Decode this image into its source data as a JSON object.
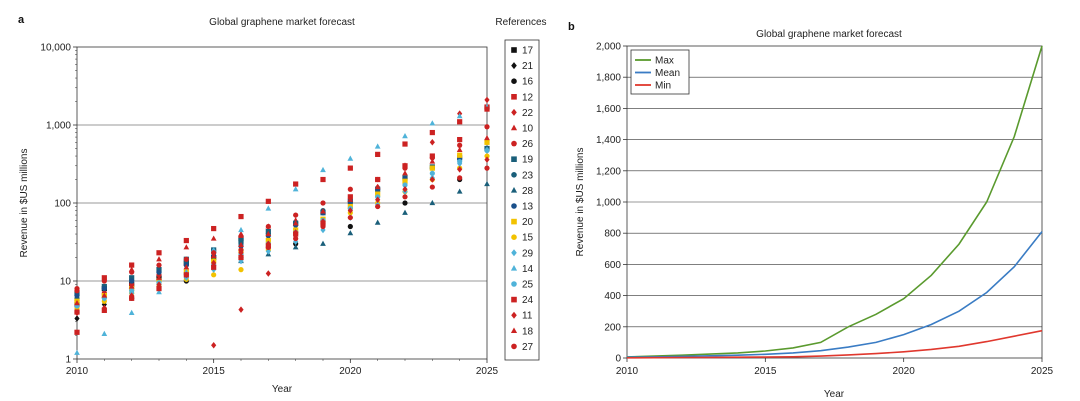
{
  "figure": {
    "panel_a_letter": "a",
    "panel_b_letter": "b"
  },
  "chart_data": [
    {
      "type": "scatter",
      "title": "Global graphene market forecast",
      "xlabel": "Year",
      "ylabel": "Revenue in $US millions",
      "yscale": "log",
      "xlim": [
        2010,
        2025
      ],
      "ylim": [
        1,
        10000
      ],
      "x_ticks": [
        "2010",
        "2015",
        "2020",
        "2025"
      ],
      "y_ticks": [
        "1",
        "10",
        "100",
        "1,000",
        "10,000"
      ],
      "legend_title": "References",
      "legend_position": "right-outside",
      "grid": "horizontal-major",
      "series": [
        {
          "name": "17",
          "marker": "square",
          "color": "#111111",
          "x": [
            2010,
            2011,
            2012,
            2013,
            2014,
            2015,
            2016
          ],
          "y": [
            5,
            8,
            9,
            11,
            17,
            20,
            35
          ]
        },
        {
          "name": "21",
          "marker": "diamond",
          "color": "#111111",
          "x": [
            2010,
            2011,
            2012,
            2013
          ],
          "y": [
            3.3,
            5,
            7,
            9
          ]
        },
        {
          "name": "16",
          "marker": "circle",
          "color": "#111111",
          "x": [
            2010,
            2012,
            2014,
            2016,
            2018,
            2020,
            2022,
            2024
          ],
          "y": [
            4,
            6,
            10,
            20,
            30,
            50,
            100,
            200
          ]
        },
        {
          "name": "12",
          "marker": "square",
          "color": "#cc2222",
          "x": [
            2010,
            2011,
            2012,
            2013,
            2014,
            2015,
            2016,
            2017,
            2018,
            2019,
            2020,
            2021,
            2022,
            2023,
            2024,
            2025
          ],
          "y": [
            2.2,
            11,
            16,
            23,
            33,
            47,
            67,
            105,
            175,
            200,
            280,
            420,
            570,
            800,
            1100,
            1700
          ]
        },
        {
          "name": "22",
          "marker": "diamond",
          "color": "#cc2222",
          "x": [
            2015,
            2016,
            2017,
            2018,
            2019,
            2020,
            2021,
            2022,
            2023,
            2024,
            2025
          ],
          "y": [
            1.5,
            4.3,
            12.5,
            40,
            60,
            100,
            160,
            300,
            600,
            1400,
            2100
          ]
        },
        {
          "name": "10",
          "marker": "triangle",
          "color": "#cc2222",
          "x": [
            2010,
            2011,
            2012,
            2013,
            2014,
            2015,
            2016,
            2017,
            2018
          ],
          "y": [
            6,
            7,
            14,
            19,
            27,
            35,
            40,
            50,
            60
          ]
        },
        {
          "name": "26",
          "marker": "circle",
          "color": "#cc2222",
          "x": [
            2010,
            2011,
            2012,
            2013,
            2014,
            2015,
            2016,
            2017,
            2018,
            2019,
            2020,
            2021,
            2022,
            2023,
            2024,
            2025
          ],
          "y": [
            8,
            7,
            9,
            12,
            16,
            25,
            37,
            50,
            70,
            100,
            150,
            200,
            280,
            380,
            550,
            950
          ]
        },
        {
          "name": "19",
          "marker": "square",
          "color": "#1a5f7a",
          "x": [
            2010,
            2011,
            2012,
            2013,
            2014,
            2015,
            2016,
            2017,
            2018,
            2019,
            2020,
            2021,
            2022,
            2023,
            2024,
            2025
          ],
          "y": [
            7,
            8.5,
            11,
            14,
            19,
            25,
            33,
            43,
            55,
            75,
            105,
            150,
            210,
            290,
            380,
            500
          ]
        },
        {
          "name": "23",
          "marker": "circle",
          "color": "#1a5f7a",
          "x": [
            2010,
            2011,
            2012,
            2013,
            2014,
            2015,
            2016,
            2017,
            2018,
            2019
          ],
          "y": [
            6,
            8,
            10,
            13,
            17,
            23,
            30,
            40,
            55,
            80
          ]
        },
        {
          "name": "28",
          "marker": "triangle",
          "color": "#1a5f7a",
          "x": [
            2016,
            2017,
            2018,
            2019,
            2020,
            2021,
            2022,
            2023,
            2024,
            2025
          ],
          "y": [
            18,
            22,
            27,
            30,
            41,
            56,
            75,
            100,
            140,
            175
          ]
        },
        {
          "name": "13",
          "marker": "circle",
          "color": "#1a4f8a",
          "x": [
            2010,
            2011,
            2012,
            2013,
            2014,
            2015,
            2016,
            2017,
            2018,
            2019,
            2020,
            2021,
            2022,
            2023,
            2024,
            2025
          ],
          "y": [
            6.5,
            8,
            10,
            13,
            16,
            21,
            28,
            38,
            52,
            75,
            105,
            150,
            205,
            280,
            375,
            480
          ]
        },
        {
          "name": "20",
          "marker": "square",
          "color": "#f2c200",
          "x": [
            2010,
            2011,
            2012,
            2013,
            2014,
            2015,
            2016,
            2017,
            2018,
            2019,
            2020,
            2021,
            2022,
            2023,
            2024,
            2025
          ],
          "y": [
            5.5,
            6.5,
            8,
            10,
            13,
            18,
            24,
            33,
            45,
            62,
            90,
            130,
            190,
            280,
            410,
            600
          ]
        },
        {
          "name": "15",
          "marker": "circle",
          "color": "#f2c200",
          "x": [
            2010,
            2011,
            2012,
            2013,
            2014,
            2015,
            2016,
            2017,
            2018,
            2019,
            2020,
            2021,
            2022,
            2023,
            2024,
            2025
          ],
          "y": [
            4.5,
            5.5,
            7,
            8.5,
            10.5,
            12,
            14,
            25,
            40,
            55,
            75,
            100,
            140,
            200,
            280,
            400
          ]
        },
        {
          "name": "29",
          "marker": "diamond",
          "color": "#4fb3d9",
          "x": [
            2010,
            2011,
            2012,
            2013,
            2014,
            2015,
            2016,
            2017,
            2018,
            2019,
            2020,
            2021,
            2022,
            2023,
            2024,
            2025
          ],
          "y": [
            5,
            6,
            7,
            9,
            11,
            14,
            18,
            24,
            32,
            45,
            65,
            95,
            140,
            210,
            320,
            480
          ]
        },
        {
          "name": "14",
          "marker": "triangle",
          "color": "#4fb3d9",
          "x": [
            2010,
            2011,
            2012,
            2013,
            2014,
            2015,
            2016,
            2017,
            2018,
            2019,
            2020,
            2021,
            2022,
            2023,
            2024,
            2025
          ],
          "y": [
            1.2,
            2.1,
            3.9,
            7.2,
            13,
            25,
            45,
            85,
            150,
            265,
            370,
            530,
            720,
            1050,
            1300,
            1700
          ]
        },
        {
          "name": "25",
          "marker": "circle",
          "color": "#4fb3d9",
          "x": [
            2010,
            2011,
            2012,
            2013,
            2014,
            2015,
            2016,
            2017,
            2018,
            2019,
            2020,
            2021,
            2022,
            2023,
            2024,
            2025
          ],
          "y": [
            4.8,
            6,
            7.5,
            9.5,
            12,
            16,
            22,
            30,
            42,
            60,
            85,
            120,
            170,
            240,
            340,
            470
          ]
        },
        {
          "name": "24",
          "marker": "square",
          "color": "#cc2222",
          "x": [
            2010,
            2011,
            2012,
            2013,
            2014,
            2015,
            2016,
            2017,
            2018,
            2019,
            2020,
            2021,
            2022,
            2023,
            2024,
            2025
          ],
          "y": [
            4,
            4.2,
            6,
            8,
            12,
            15,
            20,
            28,
            40,
            55,
            120,
            200,
            300,
            400,
            650,
            1600
          ]
        },
        {
          "name": "11",
          "marker": "diamond",
          "color": "#cc2222",
          "x": [
            2010,
            2011,
            2012,
            2013,
            2014,
            2015,
            2016,
            2017,
            2018,
            2019,
            2020,
            2021,
            2022,
            2023,
            2024,
            2025
          ],
          "y": [
            3.9,
            4.5,
            6.5,
            9,
            12,
            17,
            23,
            30,
            42,
            58,
            80,
            110,
            150,
            200,
            270,
            360
          ]
        },
        {
          "name": "18",
          "marker": "triangle",
          "color": "#cc2222",
          "x": [
            2010,
            2011,
            2012,
            2013,
            2014,
            2015,
            2016,
            2017,
            2018,
            2019,
            2020,
            2021,
            2022,
            2023,
            2024,
            2025
          ],
          "y": [
            5.2,
            6.5,
            8.5,
            11,
            15,
            21,
            29,
            40,
            55,
            78,
            110,
            160,
            240,
            340,
            480,
            680
          ]
        },
        {
          "name": "27",
          "marker": "circle",
          "color": "#cc2222",
          "x": [
            2010,
            2011,
            2012,
            2013,
            2014,
            2015,
            2016,
            2017,
            2018,
            2019,
            2020,
            2021,
            2022,
            2023,
            2024,
            2025
          ],
          "y": [
            7.5,
            10,
            13,
            16,
            19,
            23,
            25,
            27,
            35,
            50,
            65,
            90,
            120,
            160,
            210,
            280
          ]
        }
      ]
    },
    {
      "type": "line",
      "title": "Global graphene market forecast",
      "xlabel": "Year",
      "ylabel": "Revenue in $US millions",
      "xlim": [
        2010,
        2025
      ],
      "ylim": [
        0,
        2000
      ],
      "x_ticks": [
        "2010",
        "2015",
        "2020",
        "2025"
      ],
      "y_ticks": [
        "0",
        "200",
        "400",
        "600",
        "800",
        "1,000",
        "1,200",
        "1,400",
        "1,600",
        "1,800",
        "2,000"
      ],
      "legend_position": "top-left",
      "grid": "horizontal-major",
      "x": [
        2010,
        2011,
        2012,
        2013,
        2014,
        2015,
        2016,
        2017,
        2018,
        2019,
        2020,
        2021,
        2022,
        2023,
        2024,
        2025
      ],
      "series": [
        {
          "name": "Max",
          "color": "#5a9a2e",
          "values": [
            7,
            12,
            18,
            25,
            33,
            45,
            65,
            100,
            200,
            280,
            380,
            530,
            730,
            1000,
            1420,
            2000
          ]
        },
        {
          "name": "Mean",
          "color": "#3a7cc4",
          "values": [
            5,
            7,
            10,
            14,
            18,
            24,
            33,
            47,
            70,
            100,
            150,
            215,
            300,
            420,
            585,
            810
          ]
        },
        {
          "name": "Min",
          "color": "#e0382e",
          "values": [
            1,
            2,
            3,
            4,
            5,
            6,
            8,
            12,
            20,
            28,
            40,
            55,
            75,
            105,
            140,
            175
          ]
        }
      ]
    }
  ]
}
